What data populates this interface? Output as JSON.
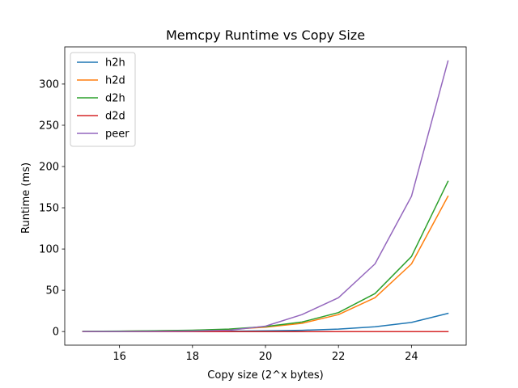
{
  "chart_data": {
    "type": "line",
    "title": "Memcpy Runtime vs Copy Size",
    "xlabel": "Copy size (2^x bytes)",
    "ylabel": "Runtime (ms)",
    "x": [
      15,
      16,
      17,
      18,
      19,
      20,
      21,
      22,
      23,
      24,
      25
    ],
    "xlim": [
      14.5,
      25.5
    ],
    "ylim": [
      -16.5,
      345
    ],
    "xticks": [
      16,
      18,
      20,
      22,
      24
    ],
    "yticks": [
      0,
      50,
      100,
      150,
      200,
      250,
      300
    ],
    "grid": false,
    "legend_position": "top-left",
    "series": [
      {
        "name": "h2h",
        "color": "#1f77b4",
        "values": [
          0.02,
          0.05,
          0.1,
          0.2,
          0.4,
          0.8,
          1.5,
          3.0,
          5.8,
          11.0,
          22.0
        ]
      },
      {
        "name": "h2d",
        "color": "#ff7f0e",
        "values": [
          0.2,
          0.4,
          0.8,
          1.3,
          2.6,
          5.2,
          10.0,
          20.5,
          41.0,
          82.0,
          164.0
        ]
      },
      {
        "name": "d2h",
        "color": "#2ca02c",
        "values": [
          0.3,
          0.5,
          1.0,
          1.6,
          3.0,
          6.0,
          11.5,
          23.0,
          46.0,
          91.0,
          182.0
        ]
      },
      {
        "name": "d2d",
        "color": "#d62728",
        "values": [
          0.0,
          0.0,
          0.0,
          0.0,
          0.0,
          0.0,
          0.0,
          0.0,
          0.0,
          0.0,
          0.0
        ]
      },
      {
        "name": "peer",
        "color": "#9467bd",
        "values": [
          0.05,
          0.1,
          0.3,
          0.6,
          1.5,
          6.5,
          20.5,
          41.0,
          82.0,
          164.0,
          328.0
        ]
      }
    ]
  }
}
